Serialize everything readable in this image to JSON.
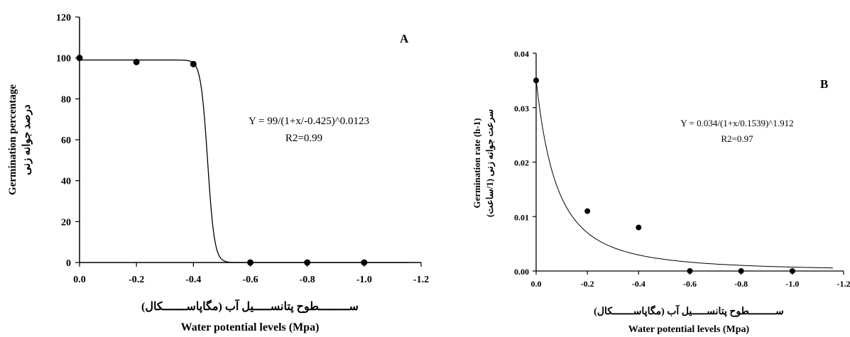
{
  "chart_data": [
    {
      "type": "scatter",
      "panel_label": "A",
      "xlabel_fa": "ســـــــــطوح پتانســـــیل آب (مگاپاســـــــکال)",
      "xlabel": "Water potential levels (Mpa)",
      "ylabel": "Germination percentage",
      "ylabel_fa": "درصد جوانه زنی",
      "xlim": [
        0.0,
        -1.2
      ],
      "ylim": [
        0,
        120
      ],
      "x_ticks": [
        "0.0",
        "-0.2",
        "-0.4",
        "-0.6",
        "-0.8",
        "-1.0",
        "-1.2"
      ],
      "y_ticks": [
        "0",
        "20",
        "40",
        "60",
        "80",
        "100",
        "120"
      ],
      "points": [
        {
          "x": 0.0,
          "y": 100
        },
        {
          "x": -0.2,
          "y": 98
        },
        {
          "x": -0.4,
          "y": 97
        },
        {
          "x": -0.6,
          "y": 0
        },
        {
          "x": -0.8,
          "y": 0
        },
        {
          "x": -1.0,
          "y": 0
        }
      ],
      "equation": "Y = 99/(1+x/-0.425)^0.0123",
      "r2": "R2=0.99",
      "grid": false
    },
    {
      "type": "scatter",
      "panel_label": "B",
      "xlabel_fa": "ســـــــــطوح پتانســـــیل آب (مگاپاســـــــکال)",
      "xlabel": "Water potential levels (Mpa)",
      "ylabel": "Germination rate (h-1)",
      "ylabel_fa": "سرعت جوانه زنی (1/ساعت)",
      "xlim": [
        0.0,
        -1.2
      ],
      "ylim": [
        0.0,
        0.04
      ],
      "x_ticks": [
        "0.0",
        "-0.2",
        "-0.4",
        "-0.6",
        "-0.8",
        "-1.0",
        "-1.2"
      ],
      "y_ticks": [
        "0.00",
        "0.01",
        "0.02",
        "0.03",
        "0.04"
      ],
      "points": [
        {
          "x": 0.0,
          "y": 0.035
        },
        {
          "x": -0.2,
          "y": 0.011
        },
        {
          "x": -0.4,
          "y": 0.008
        },
        {
          "x": -0.6,
          "y": 0.0
        },
        {
          "x": -0.8,
          "y": 0.0
        },
        {
          "x": -1.0,
          "y": 0.0
        }
      ],
      "equation": "Y = 0.034/(1+x/0.1539)^1.912",
      "r2": "R2=0.97",
      "grid": false
    }
  ]
}
